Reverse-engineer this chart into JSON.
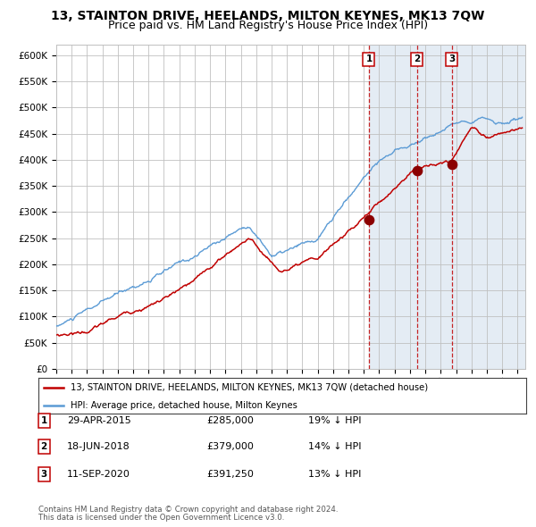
{
  "title": "13, STAINTON DRIVE, HEELANDS, MILTON KEYNES, MK13 7QW",
  "subtitle": "Price paid vs. HM Land Registry's House Price Index (HPI)",
  "title_fontsize": 10,
  "subtitle_fontsize": 9,
  "hpi_color": "#5b9bd5",
  "price_color": "#c00000",
  "marker_color": "#8b0000",
  "background_color": "#ffffff",
  "plot_bg_color": "#ffffff",
  "shade_color": "#dce6f1",
  "grid_color": "#c0c0c0",
  "ylim": [
    0,
    620000
  ],
  "yticks": [
    0,
    50000,
    100000,
    150000,
    200000,
    250000,
    300000,
    350000,
    400000,
    450000,
    500000,
    550000,
    600000
  ],
  "xlim_start": 1995.0,
  "xlim_end": 2025.5,
  "sales": [
    {
      "num": 1,
      "date_label": "29-APR-2015",
      "price": 285000,
      "year": 2015.33,
      "pct": "19%",
      "dir": "↓"
    },
    {
      "num": 2,
      "date_label": "18-JUN-2018",
      "price": 379000,
      "year": 2018.46,
      "pct": "14%",
      "dir": "↓"
    },
    {
      "num": 3,
      "date_label": "11-SEP-2020",
      "price": 391250,
      "year": 2020.71,
      "pct": "13%",
      "dir": "↓"
    }
  ],
  "legend_line1": "13, STAINTON DRIVE, HEELANDS, MILTON KEYNES, MK13 7QW (detached house)",
  "legend_line2": "HPI: Average price, detached house, Milton Keynes",
  "footer1": "Contains HM Land Registry data © Crown copyright and database right 2024.",
  "footer2": "This data is licensed under the Open Government Licence v3.0."
}
